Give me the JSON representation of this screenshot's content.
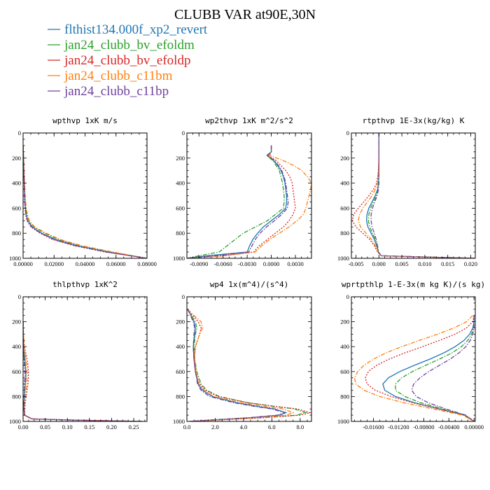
{
  "title": "CLUBB VAR at90E,30N",
  "colors": {
    "blue": "#1f77b4",
    "green": "#2ca02c",
    "red": "#d62728",
    "orange": "#ff7f0e",
    "purple": "#6f42a0"
  },
  "legend": [
    {
      "label": "flthist134.000f_xp2_revert",
      "color": "#1f77b4",
      "dash": "solid"
    },
    {
      "label": "jan24_clubb_bv_efoldm",
      "color": "#2ca02c",
      "dash": "dashdot"
    },
    {
      "label": "jan24_clubb_bv_efoldp",
      "color": "#d62728",
      "dash": "dotted"
    },
    {
      "label": "jan24_clubb_c11bm",
      "color": "#ff7f0e",
      "dash": "dashdot"
    },
    {
      "label": "jan24_clubb_c11bp",
      "color": "#6f42a0",
      "dash": "dashdot"
    }
  ],
  "chart_data": [
    {
      "type": "line",
      "title": "wpthvp  1xK m/s",
      "xlim": [
        0,
        0.08
      ],
      "ylim": [
        0,
        1000
      ],
      "y_inverted": true,
      "xticks": [
        0,
        0.02,
        0.04,
        0.06,
        0.08
      ],
      "xticklabels": [
        "0.00000",
        "0.02000",
        "0.04000",
        "0.06000",
        "0.08000"
      ],
      "yticks": [
        0,
        200,
        400,
        600,
        800,
        1000
      ],
      "y": [
        100,
        200,
        300,
        400,
        500,
        600,
        650,
        700,
        750,
        800,
        850,
        900,
        950,
        1000
      ],
      "series": [
        {
          "values": [
            0.0,
            0.0003,
            0.0005,
            0.0008,
            0.001,
            0.0015,
            0.002,
            0.003,
            0.006,
            0.012,
            0.021,
            0.035,
            0.055,
            0.08
          ]
        },
        {
          "values": [
            0.0,
            0.0003,
            0.0006,
            0.0009,
            0.0012,
            0.0018,
            0.0025,
            0.0038,
            0.007,
            0.014,
            0.023,
            0.037,
            0.057,
            0.08
          ]
        },
        {
          "values": [
            0.0,
            0.0002,
            0.0004,
            0.0006,
            0.0008,
            0.0012,
            0.0016,
            0.0025,
            0.005,
            0.011,
            0.019,
            0.033,
            0.053,
            0.08
          ]
        },
        {
          "values": [
            0.0,
            0.0004,
            0.0007,
            0.001,
            0.0014,
            0.002,
            0.0028,
            0.004,
            0.0075,
            0.015,
            0.024,
            0.038,
            0.058,
            0.08
          ]
        },
        {
          "values": [
            0.0,
            0.0002,
            0.0004,
            0.0007,
            0.0009,
            0.0013,
            0.0018,
            0.0028,
            0.0055,
            0.0115,
            0.02,
            0.034,
            0.054,
            0.08
          ]
        }
      ]
    },
    {
      "type": "line",
      "title": "wp2thvp  1xK m^2/s^2",
      "xlim": [
        -0.0105,
        0.005
      ],
      "ylim": [
        0,
        1000
      ],
      "y_inverted": true,
      "xticks": [
        -0.009,
        -0.006,
        -0.003,
        0.0,
        0.003
      ],
      "xticklabels": [
        "-0.0090",
        "-0.0060",
        "-0.0030",
        "0.0000",
        "0.0030"
      ],
      "yticks": [
        0,
        200,
        400,
        600,
        800,
        1000
      ],
      "y": [
        100,
        150,
        180,
        220,
        260,
        300,
        350,
        400,
        450,
        500,
        550,
        600,
        650,
        700,
        750,
        800,
        850,
        900,
        950,
        980,
        1000
      ],
      "series": [
        {
          "values": [
            0.0,
            0.0,
            -0.0005,
            0.0003,
            0.0008,
            0.0012,
            0.0015,
            0.0017,
            0.0018,
            0.0019,
            0.0019,
            0.0018,
            0.001,
            0.0,
            -0.001,
            -0.0017,
            -0.0023,
            -0.0027,
            -0.003,
            -0.008,
            -0.0105
          ]
        },
        {
          "values": [
            0.0,
            0.0,
            -0.0006,
            0.0002,
            0.0006,
            0.001,
            0.0012,
            0.0014,
            0.0015,
            0.0016,
            0.0016,
            0.0015,
            0.0005,
            -0.0005,
            -0.002,
            -0.0035,
            -0.0045,
            -0.0055,
            -0.0065,
            -0.009,
            -0.0105
          ]
        },
        {
          "values": [
            0.0,
            0.0,
            -0.0004,
            0.0006,
            0.0012,
            0.0018,
            0.0023,
            0.0026,
            0.0027,
            0.0028,
            0.0029,
            0.003,
            0.0027,
            0.0022,
            0.0015,
            0.0005,
            -0.0005,
            -0.0015,
            -0.0022,
            -0.006,
            -0.0105
          ]
        },
        {
          "values": [
            0.0,
            0.0,
            -0.0002,
            0.0015,
            0.0028,
            0.0038,
            0.0045,
            0.005,
            0.0049,
            0.0047,
            0.0045,
            0.0043,
            0.004,
            0.0032,
            0.0022,
            0.001,
            -0.0002,
            -0.0012,
            -0.002,
            -0.006,
            -0.0105
          ]
        },
        {
          "values": [
            0.0,
            0.0,
            -0.0005,
            0.0004,
            0.0009,
            0.0013,
            0.0016,
            0.0018,
            0.0019,
            0.002,
            0.0021,
            0.002,
            0.0013,
            0.0004,
            -0.0006,
            -0.0014,
            -0.002,
            -0.0024,
            -0.0028,
            -0.007,
            -0.0105
          ]
        }
      ]
    },
    {
      "type": "line",
      "title": "rtpthvp  1E-3x(kg/kg) K",
      "xlim": [
        -0.006,
        0.021
      ],
      "ylim": [
        0,
        1000
      ],
      "y_inverted": true,
      "xticks": [
        -0.005,
        0.0,
        0.005,
        0.01,
        0.015,
        0.02
      ],
      "xticklabels": [
        "-0.005",
        "0.000",
        "0.005",
        "0.010",
        "0.015",
        "0.020"
      ],
      "yticks": [
        0,
        200,
        400,
        600,
        800,
        1000
      ],
      "y": [
        0,
        100,
        200,
        300,
        400,
        450,
        500,
        550,
        600,
        650,
        700,
        750,
        800,
        850,
        900,
        950,
        980,
        1000
      ],
      "series": [
        {
          "values": [
            0.0,
            0.0,
            0.0,
            0.0,
            -0.0001,
            -0.0003,
            -0.0008,
            -0.0015,
            -0.0022,
            -0.0026,
            -0.0027,
            -0.0024,
            -0.0017,
            -0.001,
            -0.0005,
            -0.0001,
            0.0005,
            0.021
          ]
        },
        {
          "values": [
            0.0,
            0.0,
            0.0,
            0.0,
            -0.0001,
            -0.0002,
            -0.0006,
            -0.0012,
            -0.0018,
            -0.0022,
            -0.0023,
            -0.002,
            -0.0014,
            -0.0008,
            -0.0004,
            -0.0001,
            0.0005,
            0.021
          ]
        },
        {
          "values": [
            0.0,
            0.0,
            0.0,
            -0.0001,
            -0.0005,
            -0.0012,
            -0.0022,
            -0.0033,
            -0.0045,
            -0.0055,
            -0.0058,
            -0.005,
            -0.0035,
            -0.002,
            -0.001,
            -0.0003,
            0.0005,
            0.021
          ]
        },
        {
          "values": [
            0.0,
            0.0,
            0.0,
            -0.0001,
            -0.0003,
            -0.0008,
            -0.0015,
            -0.0025,
            -0.0035,
            -0.0042,
            -0.0045,
            -0.004,
            -0.0028,
            -0.0016,
            -0.0008,
            -0.0002,
            0.0005,
            0.021
          ]
        },
        {
          "values": [
            0.0,
            0.0,
            0.0,
            0.0,
            0.0,
            -0.0001,
            -0.0004,
            -0.0009,
            -0.0014,
            -0.0017,
            -0.0017,
            -0.0015,
            -0.001,
            -0.0006,
            -0.0003,
            -0.0001,
            0.0005,
            0.021
          ]
        }
      ]
    },
    {
      "type": "line",
      "title": "thlpthvp  1xK^2",
      "xlim": [
        0,
        0.28
      ],
      "ylim": [
        0,
        1000
      ],
      "y_inverted": true,
      "xticks": [
        0,
        0.05,
        0.1,
        0.15,
        0.2,
        0.25
      ],
      "xticklabels": [
        "0.00",
        "0.05",
        "0.10",
        "0.15",
        "0.20",
        "0.25"
      ],
      "yticks": [
        0,
        200,
        400,
        600,
        800,
        1000
      ],
      "y": [
        200,
        300,
        400,
        450,
        500,
        550,
        600,
        650,
        700,
        750,
        800,
        850,
        900,
        950,
        980,
        990,
        1000
      ],
      "series": [
        {
          "values": [
            0.0,
            0.0,
            0.001,
            0.002,
            0.004,
            0.005,
            0.006,
            0.006,
            0.005,
            0.004,
            0.003,
            0.002,
            0.002,
            0.003,
            0.02,
            0.12,
            0.27
          ]
        },
        {
          "values": [
            0.0,
            0.0,
            0.001,
            0.002,
            0.003,
            0.004,
            0.005,
            0.005,
            0.004,
            0.004,
            0.003,
            0.002,
            0.002,
            0.003,
            0.02,
            0.12,
            0.27
          ]
        },
        {
          "values": [
            0.0,
            0.001,
            0.003,
            0.006,
            0.009,
            0.011,
            0.012,
            0.012,
            0.011,
            0.009,
            0.007,
            0.005,
            0.004,
            0.004,
            0.02,
            0.12,
            0.27
          ]
        },
        {
          "values": [
            0.0,
            0.001,
            0.002,
            0.004,
            0.006,
            0.008,
            0.009,
            0.009,
            0.008,
            0.007,
            0.005,
            0.004,
            0.003,
            0.003,
            0.02,
            0.12,
            0.27
          ]
        },
        {
          "values": [
            0.0,
            0.0,
            0.001,
            0.001,
            0.002,
            0.003,
            0.004,
            0.004,
            0.003,
            0.003,
            0.002,
            0.002,
            0.002,
            0.003,
            0.02,
            0.12,
            0.27
          ]
        }
      ]
    },
    {
      "type": "line",
      "title": "wp4  1x(m^4)/(s^4)",
      "xlim": [
        0,
        8.8
      ],
      "ylim": [
        0,
        1000
      ],
      "y_inverted": true,
      "xticks": [
        0,
        2,
        4,
        6,
        8
      ],
      "xticklabels": [
        "0.0",
        "2.0",
        "4.0",
        "6.0",
        "8.0"
      ],
      "yticks": [
        0,
        200,
        400,
        600,
        800,
        1000
      ],
      "y": [
        100,
        150,
        200,
        250,
        300,
        400,
        500,
        600,
        700,
        750,
        800,
        850,
        880,
        900,
        930,
        950,
        970,
        990,
        1000
      ],
      "series": [
        {
          "values": [
            0.05,
            0.3,
            0.5,
            0.6,
            0.55,
            0.45,
            0.5,
            0.6,
            0.8,
            1.1,
            1.8,
            3.5,
            5.0,
            6.2,
            7.0,
            6.5,
            4.5,
            1.5,
            0.2
          ]
        },
        {
          "values": [
            0.05,
            0.3,
            0.6,
            0.7,
            0.6,
            0.5,
            0.55,
            0.7,
            1.0,
            1.4,
            2.3,
            4.3,
            6.2,
            7.6,
            8.4,
            7.7,
            5.2,
            1.8,
            0.2
          ]
        },
        {
          "values": [
            0.05,
            0.4,
            0.8,
            1.0,
            0.9,
            0.6,
            0.5,
            0.6,
            0.9,
            1.3,
            2.2,
            4.3,
            6.3,
            7.8,
            8.7,
            8.0,
            5.5,
            1.9,
            0.2
          ]
        },
        {
          "values": [
            0.05,
            0.5,
            1.0,
            1.1,
            0.9,
            0.6,
            0.55,
            0.65,
            0.85,
            1.2,
            1.9,
            3.8,
            5.5,
            6.8,
            7.5,
            7.0,
            4.8,
            1.6,
            0.2
          ]
        },
        {
          "values": [
            0.05,
            0.25,
            0.45,
            0.55,
            0.5,
            0.45,
            0.5,
            0.6,
            0.75,
            1.0,
            1.6,
            3.3,
            4.8,
            6.0,
            6.9,
            6.4,
            4.4,
            1.5,
            0.2
          ]
        }
      ]
    },
    {
      "type": "line",
      "title": "wprtpthlp  1-E-3x(m kg K)/(s kg)",
      "xlim": [
        -0.0195,
        0.0002
      ],
      "ylim": [
        0,
        1000
      ],
      "y_inverted": true,
      "xticks": [
        -0.016,
        -0.012,
        -0.008,
        -0.004,
        0.0
      ],
      "xticklabels": [
        "-0.01600",
        "-0.01200",
        "-0.00800",
        "-0.00400",
        "0.00000"
      ],
      "yticks": [
        0,
        200,
        400,
        600,
        800,
        1000
      ],
      "y": [
        150,
        200,
        250,
        300,
        350,
        400,
        450,
        500,
        550,
        600,
        650,
        700,
        750,
        800,
        850,
        900,
        950,
        1000
      ],
      "series": [
        {
          "values": [
            0.0,
            0.0,
            -0.0002,
            -0.0007,
            -0.0016,
            -0.003,
            -0.0048,
            -0.007,
            -0.0095,
            -0.0118,
            -0.0136,
            -0.0145,
            -0.0142,
            -0.0125,
            -0.0095,
            -0.0055,
            -0.0015,
            0.0
          ]
        },
        {
          "values": [
            0.0,
            0.0,
            -0.0001,
            -0.0004,
            -0.001,
            -0.002,
            -0.0035,
            -0.0055,
            -0.0077,
            -0.0098,
            -0.0115,
            -0.0125,
            -0.0125,
            -0.011,
            -0.0085,
            -0.005,
            -0.0014,
            0.0
          ]
        },
        {
          "values": [
            0.0,
            -0.0002,
            -0.0012,
            -0.003,
            -0.0055,
            -0.0082,
            -0.011,
            -0.0135,
            -0.0155,
            -0.0168,
            -0.0173,
            -0.017,
            -0.0157,
            -0.0132,
            -0.0098,
            -0.0057,
            -0.0016,
            0.0
          ]
        },
        {
          "values": [
            -0.0002,
            -0.0012,
            -0.0032,
            -0.0058,
            -0.0087,
            -0.0115,
            -0.014,
            -0.016,
            -0.0175,
            -0.0185,
            -0.019,
            -0.0188,
            -0.0175,
            -0.015,
            -0.0112,
            -0.0065,
            -0.0018,
            0.0
          ]
        },
        {
          "values": [
            0.0,
            0.0,
            0.0,
            -0.0002,
            -0.0006,
            -0.0013,
            -0.0024,
            -0.0038,
            -0.0055,
            -0.0072,
            -0.0086,
            -0.0096,
            -0.0099,
            -0.0092,
            -0.0073,
            -0.0045,
            -0.0013,
            0.0
          ]
        }
      ]
    }
  ]
}
